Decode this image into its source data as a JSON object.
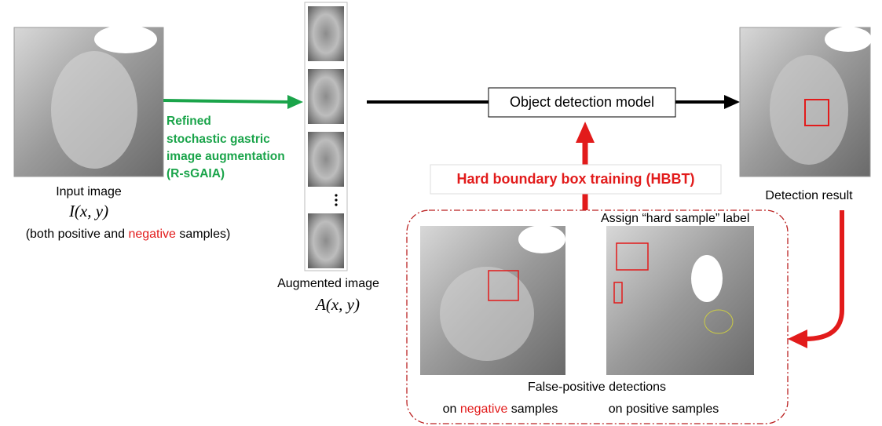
{
  "input": {
    "label": "Input image",
    "formula": "I(x, y)",
    "note": [
      "(both positive and ",
      "negative",
      " samples)"
    ]
  },
  "augmentation": {
    "lines": [
      "Refined",
      "stochastic gastric",
      "image augmentation",
      "(R-sGAIA)"
    ]
  },
  "augmented": {
    "label": "Augmented image",
    "formula": "A(x, y)"
  },
  "model": {
    "label": "Object detection model"
  },
  "hbbt": {
    "label": "Hard boundary box training (HBBT)"
  },
  "result": {
    "label": "Detection result"
  },
  "hard_sample": {
    "label": "Assign “hard sample” label",
    "title": "False-positive detections",
    "negative": [
      "on ",
      "negative",
      " samples"
    ],
    "positive": "on positive samples"
  }
}
